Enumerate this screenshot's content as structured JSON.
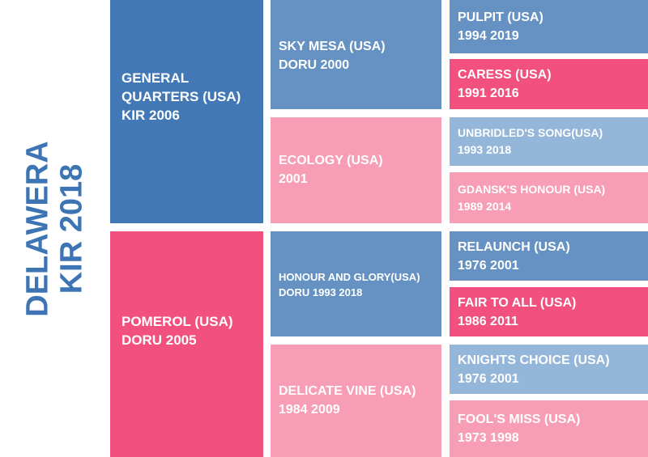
{
  "colors": {
    "dark_blue": "#4178b5",
    "mid_blue": "#6592c3",
    "light_blue": "#93b6d9",
    "hot_pink": "#f2507f",
    "light_pink": "#f79db5",
    "title_blue": "#3d74b3"
  },
  "subject": {
    "line1": "DELAWERA",
    "line2": "KIR 2018"
  },
  "sire": {
    "name_line1": "GENERAL",
    "name_line2": "QUARTERS (USA)",
    "meta": "KIR 2006",
    "sire": {
      "name": "SKY MESA (USA)",
      "meta": "DORU 2000",
      "sire": {
        "name": "PULPIT (USA)",
        "meta": "1994 2019"
      },
      "dam": {
        "name": "CARESS (USA)",
        "meta": "1991 2016"
      }
    },
    "dam": {
      "name": "ECOLOGY (USA)",
      "meta": "2001",
      "sire": {
        "name": "UNBRIDLED'S SONG(USA)",
        "meta": "1993 2018"
      },
      "dam": {
        "name": "GDANSK'S HONOUR (USA)",
        "meta": "1989 2014"
      }
    }
  },
  "dam": {
    "name": "POMEROL (USA)",
    "meta": "DORU 2005",
    "sire": {
      "name": "HONOUR AND GLORY(USA)",
      "meta": "DORU 1993 2018",
      "sire": {
        "name": "RELAUNCH (USA)",
        "meta": "1976 2001"
      },
      "dam": {
        "name": "FAIR TO ALL (USA)",
        "meta": "1986 2011"
      }
    },
    "dam": {
      "name": "DELICATE VINE (USA)",
      "meta": "1984 2009",
      "sire": {
        "name": "KNIGHTS CHOICE (USA)",
        "meta": "1976 2001"
      },
      "dam": {
        "name": "FOOL'S MISS (USA)",
        "meta": "1973 1998"
      }
    }
  }
}
